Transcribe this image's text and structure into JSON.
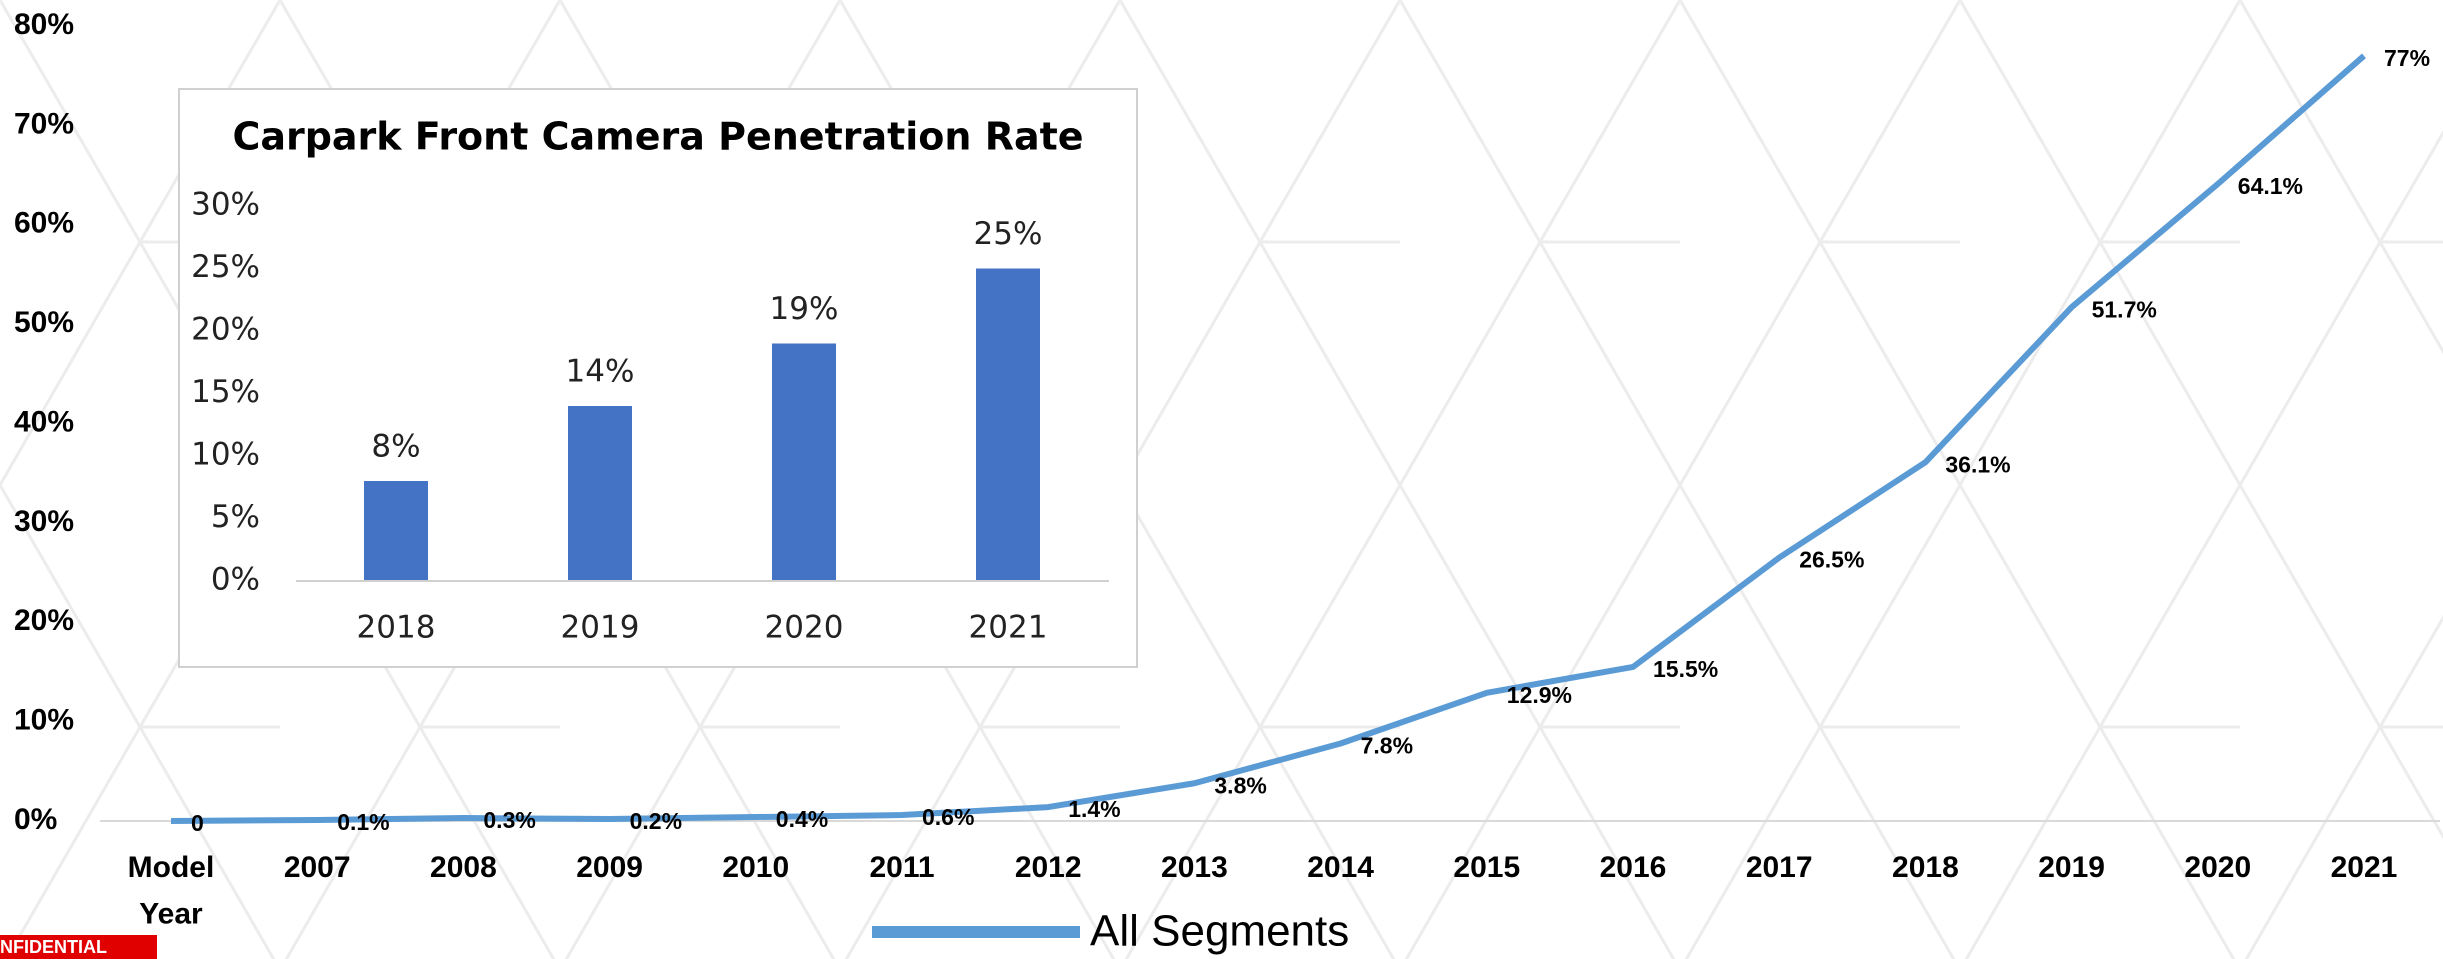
{
  "chart_data": [
    {
      "type": "line",
      "categories": [
        "Model Year",
        "2007",
        "2008",
        "2009",
        "2010",
        "2011",
        "2012",
        "2013",
        "2014",
        "2015",
        "2016",
        "2017",
        "2018",
        "2019",
        "2020",
        "2021"
      ],
      "series": [
        {
          "name": "All Segments",
          "color": "#5b9bd5",
          "values": [
            0,
            0.1,
            0.3,
            0.2,
            0.4,
            0.6,
            1.4,
            3.8,
            7.8,
            12.9,
            15.5,
            26.5,
            36.1,
            51.7,
            64.1,
            77
          ],
          "value_labels": [
            "0",
            "0.1%",
            "0.3%",
            "0.2%",
            "0.4%",
            "0.6%",
            "1.4%",
            "3.8%",
            "7.8%",
            "12.9%",
            "15.5%",
            "26.5%",
            "36.1%",
            "51.7%",
            "64.1%",
            "77%"
          ]
        }
      ],
      "ylim": [
        0,
        80
      ],
      "yticks": [
        {
          "value": 0,
          "label": "0%"
        },
        {
          "value": 10,
          "label": "10%"
        },
        {
          "value": 20,
          "label": "20%"
        },
        {
          "value": 30,
          "label": "30%"
        },
        {
          "value": 40,
          "label": "40%"
        },
        {
          "value": 50,
          "label": "50%"
        },
        {
          "value": 60,
          "label": "60%"
        },
        {
          "value": 70,
          "label": "70%"
        },
        {
          "value": 80,
          "label": "80%"
        }
      ],
      "legend": "bottom"
    },
    {
      "type": "bar",
      "title": "Carpark Front Camera Penetration Rate",
      "categories": [
        "2018",
        "2019",
        "2020",
        "2021"
      ],
      "values": [
        8,
        14,
        19,
        25
      ],
      "value_labels": [
        "8%",
        "14%",
        "19%",
        "25%"
      ],
      "color": "#4472c4",
      "ylim": [
        0,
        30
      ],
      "yticks": [
        {
          "value": 0,
          "label": "0%"
        },
        {
          "value": 5,
          "label": "5%"
        },
        {
          "value": 10,
          "label": "10%"
        },
        {
          "value": 15,
          "label": "15%"
        },
        {
          "value": 20,
          "label": "20%"
        },
        {
          "value": 25,
          "label": "25%"
        },
        {
          "value": 30,
          "label": "30%"
        }
      ]
    }
  ],
  "badge": "NFIDENTIAL"
}
